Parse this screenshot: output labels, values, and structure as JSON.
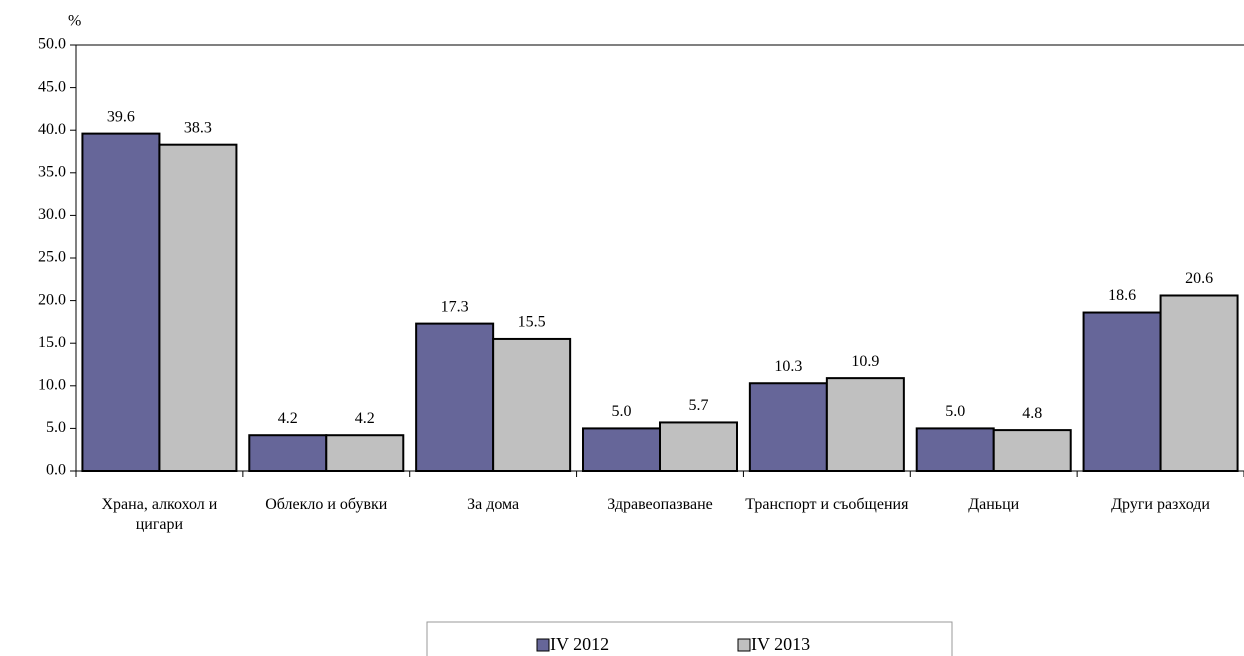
{
  "chart_data": {
    "type": "bar",
    "y_label": "%",
    "categories": [
      "Храна, алкохол и цигари",
      "Облекло и обувки",
      "За дома",
      "Здравеопазване",
      "Транспорт и съобщения",
      "Даньци",
      "Други разходи"
    ],
    "series": [
      {
        "name": "IV 2012",
        "color": "#666699",
        "values": [
          39.6,
          4.2,
          17.3,
          5.0,
          10.3,
          5.0,
          18.6
        ],
        "value_labels": [
          "39.6",
          "4.2",
          "17.3",
          "5.0",
          "10.3",
          "5.0",
          "18.6"
        ]
      },
      {
        "name": "IV 2013",
        "color": "#c0c0c0",
        "values": [
          38.3,
          4.2,
          15.5,
          5.7,
          10.9,
          4.8,
          20.6
        ],
        "value_labels": [
          "38.3",
          "4.2",
          "15.5",
          "5.7",
          "10.9",
          "4.8",
          "20.6"
        ]
      }
    ],
    "ylim": [
      0,
      50
    ],
    "yticks": [
      {
        "value": 0,
        "label": "0.0"
      },
      {
        "value": 5,
        "label": "5.0"
      },
      {
        "value": 10,
        "label": "10.0"
      },
      {
        "value": 15,
        "label": "15.0"
      },
      {
        "value": 20,
        "label": "20.0"
      },
      {
        "value": 25,
        "label": "25.0"
      },
      {
        "value": 30,
        "label": "30.0"
      },
      {
        "value": 35,
        "label": "35.0"
      },
      {
        "value": 40,
        "label": "40.0"
      },
      {
        "value": 45,
        "label": "45.0"
      },
      {
        "value": 50,
        "label": "50.0"
      }
    ],
    "grid": false,
    "legend": "bottom"
  }
}
